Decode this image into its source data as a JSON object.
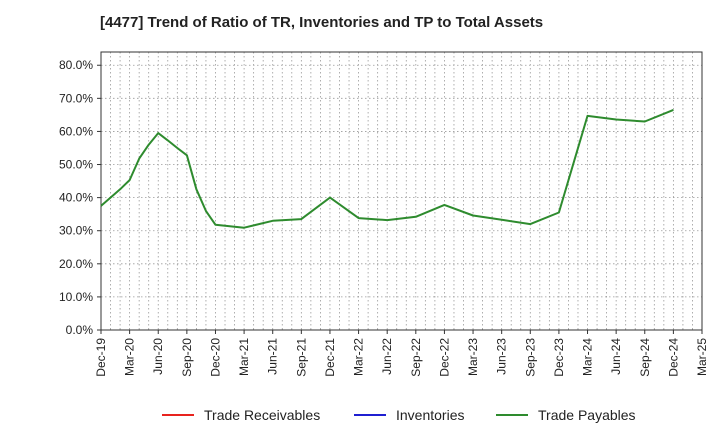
{
  "title": "[4477]  Trend of Ratio of TR, Inventories and TP to Total Assets",
  "chart_data": {
    "type": "line",
    "y_tick_labels": [
      "0.0%",
      "10.0%",
      "20.0%",
      "30.0%",
      "40.0%",
      "50.0%",
      "60.0%",
      "70.0%",
      "80.0%"
    ],
    "ylim": [
      0,
      84
    ],
    "x_tick_labels": [
      "Dec-19",
      "Mar-20",
      "Jun-20",
      "Sep-20",
      "Dec-20",
      "Mar-21",
      "Jun-21",
      "Sep-21",
      "Dec-21",
      "Mar-22",
      "Jun-22",
      "Sep-22",
      "Dec-22",
      "Mar-23",
      "Jun-23",
      "Sep-23",
      "Dec-23",
      "Mar-24",
      "Jun-24",
      "Sep-24",
      "Dec-24",
      "Mar-25"
    ],
    "xlim": [
      "2019-12",
      "2025-03"
    ],
    "grid": true,
    "legend_position": "bottom",
    "series": [
      {
        "name": "Trade Receivables",
        "color": "#e8231e",
        "points": []
      },
      {
        "name": "Inventories",
        "color": "#1f1fd1",
        "points": []
      },
      {
        "name": "Trade Payables",
        "color": "#2e8b2e",
        "points": [
          [
            "2019-12",
            37.5
          ],
          [
            "2020-01",
            40.0
          ],
          [
            "2020-02",
            42.5
          ],
          [
            "2020-03",
            45.3
          ],
          [
            "2020-04",
            51.8
          ],
          [
            "2020-05",
            56.0
          ],
          [
            "2020-06",
            59.5
          ],
          [
            "2020-07",
            57.3
          ],
          [
            "2020-08",
            55.0
          ],
          [
            "2020-09",
            52.8
          ],
          [
            "2020-10",
            42.5
          ],
          [
            "2020-11",
            36.0
          ],
          [
            "2020-12",
            31.8
          ],
          [
            "2021-03",
            30.9
          ],
          [
            "2021-06",
            33.0
          ],
          [
            "2021-09",
            33.5
          ],
          [
            "2021-12",
            40.0
          ],
          [
            "2022-03",
            33.8
          ],
          [
            "2022-06",
            33.2
          ],
          [
            "2022-09",
            34.2
          ],
          [
            "2022-12",
            37.8
          ],
          [
            "2023-03",
            34.6
          ],
          [
            "2023-06",
            33.3
          ],
          [
            "2023-09",
            32.0
          ],
          [
            "2023-12",
            35.5
          ],
          [
            "2024-03",
            64.7
          ],
          [
            "2024-06",
            63.6
          ],
          [
            "2024-09",
            63.0
          ],
          [
            "2024-12",
            66.5
          ]
        ]
      }
    ]
  }
}
